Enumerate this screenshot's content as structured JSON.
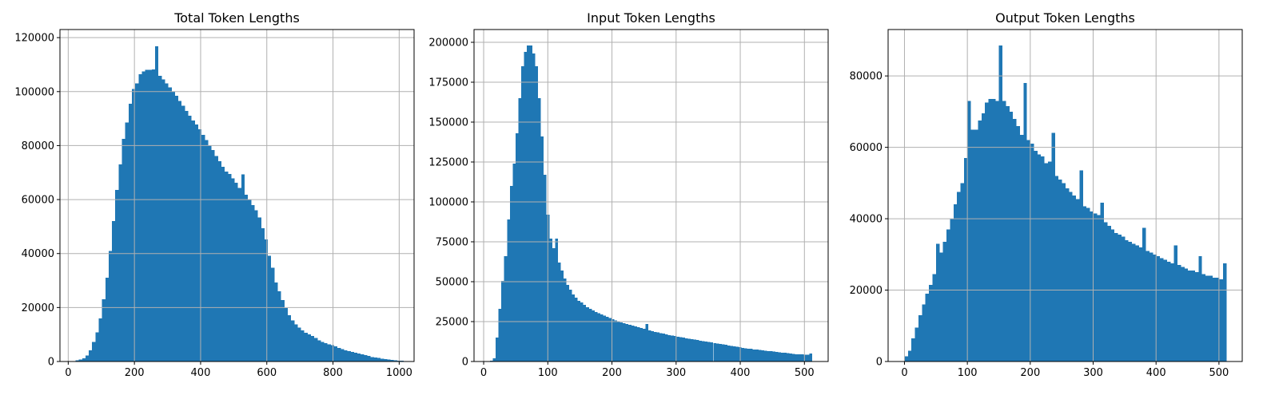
{
  "figure": {
    "bar_color": "#1f77b4",
    "grid_color": "#b0b0b0",
    "background": "#ffffff"
  },
  "chart_data": [
    {
      "type": "bar",
      "title": "Total Token Lengths",
      "xlabel": "",
      "ylabel": "",
      "grid": true,
      "xlim": [
        -25,
        1045
      ],
      "ylim": [
        0,
        123000
      ],
      "xticks": [
        0,
        200,
        400,
        600,
        800,
        1000
      ],
      "yticks": [
        0,
        20000,
        40000,
        60000,
        80000,
        100000,
        120000
      ],
      "xtick_labels": [
        "0",
        "200",
        "400",
        "600",
        "800",
        "1000"
      ],
      "ytick_labels": [
        "0",
        "20000",
        "40000",
        "60000",
        "80000",
        "100000",
        "120000"
      ],
      "bins": [
        22,
        1024
      ],
      "counts": [
        500,
        800,
        1200,
        2200,
        4100,
        7200,
        10800,
        16000,
        23000,
        31000,
        41000,
        52000,
        63500,
        73000,
        82500,
        88500,
        95500,
        101000,
        103000,
        106500,
        107500,
        108000,
        108000,
        108200,
        116800,
        105800,
        104500,
        103000,
        101500,
        100000,
        98500,
        96500,
        94800,
        92800,
        91000,
        89300,
        87800,
        86000,
        84000,
        82000,
        80000,
        78300,
        76200,
        74200,
        72200,
        70300,
        69500,
        67800,
        66200,
        64300,
        69300,
        61800,
        60000,
        58000,
        56000,
        53400,
        49400,
        45200,
        39200,
        34800,
        29200,
        26000,
        22800,
        19800,
        17200,
        15200,
        13800,
        12500,
        11500,
        10700,
        10000,
        9400,
        8700,
        7900,
        7300,
        6800,
        6400,
        6000,
        5600,
        5100,
        4600,
        4200,
        3800,
        3500,
        3200,
        2900,
        2600,
        2300,
        2000,
        1700,
        1500,
        1300,
        1100,
        900,
        750,
        600,
        450,
        350,
        250,
        200
      ]
    },
    {
      "type": "bar",
      "title": "Input Token Lengths",
      "xlabel": "",
      "ylabel": "",
      "grid": true,
      "xlim": [
        -15,
        537
      ],
      "ylim": [
        0,
        208000
      ],
      "xticks": [
        0,
        100,
        200,
        300,
        400,
        500
      ],
      "yticks": [
        0,
        25000,
        50000,
        75000,
        100000,
        125000,
        150000,
        175000,
        200000
      ],
      "xtick_labels": [
        "0",
        "100",
        "200",
        "300",
        "400",
        "500"
      ],
      "ytick_labels": [
        "0",
        "25000",
        "50000",
        "75000",
        "100000",
        "125000",
        "150000",
        "175000",
        "200000"
      ],
      "bins": [
        10,
        512
      ],
      "counts": [
        500,
        2000,
        15000,
        33000,
        50500,
        66000,
        89000,
        110000,
        124000,
        143000,
        165000,
        185000,
        194000,
        198000,
        198000,
        193000,
        185000,
        165000,
        141000,
        117000,
        92000,
        77000,
        71000,
        77000,
        62000,
        57000,
        52000,
        48000,
        45000,
        42000,
        40000,
        38000,
        37000,
        35500,
        34000,
        33000,
        32000,
        31000,
        30200,
        29400,
        28700,
        27900,
        27200,
        26500,
        25800,
        25200,
        24600,
        24000,
        23500,
        22900,
        22400,
        22000,
        21500,
        21000,
        20500,
        23500,
        19500,
        19000,
        18600,
        18200,
        17800,
        17400,
        17000,
        16600,
        16200,
        15900,
        15500,
        15200,
        14900,
        14600,
        14300,
        14000,
        13700,
        13400,
        13100,
        12800,
        12500,
        12200,
        11900,
        11600,
        11300,
        11000,
        10700,
        10400,
        10100,
        9800,
        9500,
        9200,
        8900,
        8600,
        8300,
        8100,
        7900,
        7600,
        7400,
        7200,
        7000,
        6800,
        6600,
        6400,
        6200,
        6000,
        5800,
        5600,
        5400,
        5200,
        5000,
        4800,
        4600,
        4500,
        4400,
        4300,
        4200,
        5000
      ]
    },
    {
      "type": "bar",
      "title": "Output Token Lengths",
      "xlabel": "",
      "ylabel": "",
      "grid": true,
      "xlim": [
        -26,
        537
      ],
      "ylim": [
        0,
        93000
      ],
      "xticks": [
        0,
        100,
        200,
        300,
        400,
        500
      ],
      "yticks": [
        0,
        20000,
        40000,
        60000,
        80000
      ],
      "xtick_labels": [
        "0",
        "100",
        "200",
        "300",
        "400",
        "500"
      ],
      "ytick_labels": [
        "0",
        "20000",
        "40000",
        "60000",
        "80000"
      ],
      "bins": [
        0,
        512
      ],
      "counts": [
        1500,
        3000,
        6500,
        9500,
        13000,
        16000,
        19000,
        21500,
        24500,
        33000,
        30500,
        33500,
        37000,
        40000,
        44000,
        47500,
        50000,
        57000,
        73000,
        65000,
        65000,
        67500,
        69500,
        72500,
        73500,
        73500,
        73000,
        88500,
        73000,
        71500,
        70000,
        68000,
        66000,
        63500,
        78000,
        62000,
        61000,
        59000,
        58000,
        57500,
        55500,
        56000,
        64000,
        52000,
        51000,
        50000,
        48500,
        47500,
        46500,
        45500,
        53500,
        43500,
        43000,
        42000,
        41500,
        41000,
        44500,
        39000,
        38000,
        37000,
        36000,
        35500,
        35000,
        34000,
        33500,
        33000,
        32500,
        32000,
        37500,
        31000,
        30500,
        30000,
        29500,
        29000,
        28500,
        28000,
        27500,
        32500,
        27000,
        26500,
        26000,
        25500,
        25500,
        25000,
        29500,
        24500,
        24000,
        24000,
        23500,
        23500,
        23000,
        27500
      ]
    }
  ]
}
